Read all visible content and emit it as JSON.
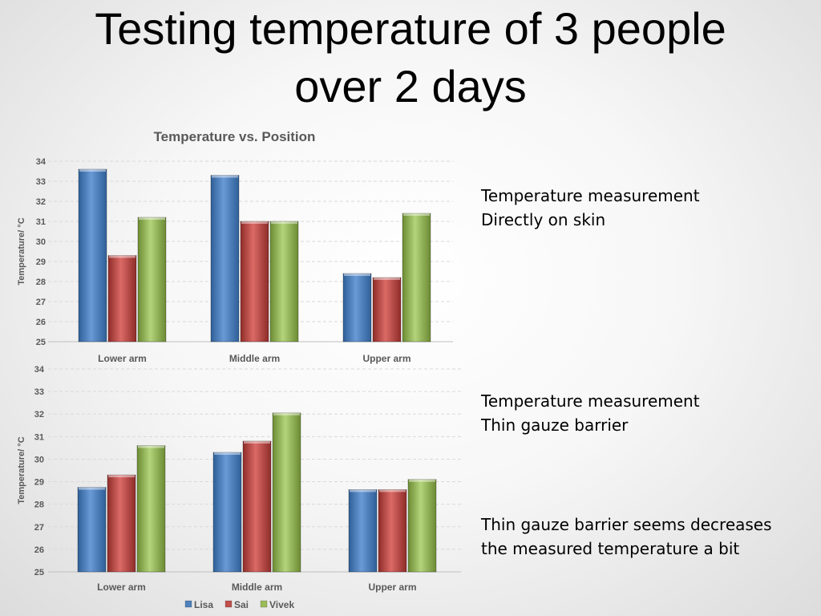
{
  "slide": {
    "title_line1": "Testing temperature of 3 people",
    "title_line2": "over 2 days"
  },
  "notes": [
    {
      "line1": "Temperature measurement",
      "line2": "Directly on skin"
    },
    {
      "line1": "Temperature measurement",
      "line2": "Thin gauze barrier"
    },
    {
      "line1": "Thin gauze barrier seems decreases",
      "line2": "the measured temperature a bit"
    }
  ],
  "colors": {
    "Lisa": "#4f81bd",
    "Sai": "#c0504d",
    "Vivek": "#9bbb59",
    "axis_text": "#595959",
    "grid": "#d9d9d9"
  },
  "chart_data": [
    {
      "type": "bar",
      "title": "Temperature vs. Position",
      "xlabel": "",
      "ylabel": "Temperature/ °C",
      "categories": [
        "Lower arm",
        "Middle arm",
        "Upper arm"
      ],
      "ylim": [
        25,
        34
      ],
      "yticks": [
        25,
        26,
        27,
        28,
        29,
        30,
        31,
        32,
        33,
        34
      ],
      "grid": true,
      "series": [
        {
          "name": "Lisa",
          "values": [
            33.6,
            33.3,
            28.4
          ]
        },
        {
          "name": "Sai",
          "values": [
            29.3,
            31.0,
            28.2
          ]
        },
        {
          "name": "Vivek",
          "values": [
            31.2,
            31.0,
            31.4
          ]
        }
      ]
    },
    {
      "type": "bar",
      "title": "",
      "xlabel": "",
      "ylabel": "Temperature/ °C",
      "categories": [
        "Lower arm",
        "Middle arm",
        "Upper arm"
      ],
      "ylim": [
        25,
        34
      ],
      "yticks": [
        25,
        26,
        27,
        28,
        29,
        30,
        31,
        32,
        33,
        34
      ],
      "grid": true,
      "legend": "bottom",
      "series": [
        {
          "name": "Lisa",
          "values": [
            28.75,
            30.3,
            28.65
          ]
        },
        {
          "name": "Sai",
          "values": [
            29.3,
            30.8,
            28.65
          ]
        },
        {
          "name": "Vivek",
          "values": [
            30.6,
            32.05,
            29.1
          ]
        }
      ]
    }
  ]
}
